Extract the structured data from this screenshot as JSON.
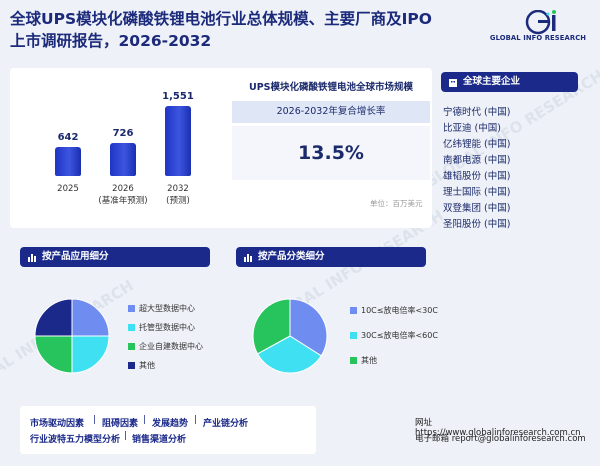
{
  "header": {
    "title_line1": "全球UPS模块化磷酸铁锂电池行业总体规模、主要厂商及IPO",
    "title_line2": "上市调研报告，2026-2032",
    "logo_text": "GLOBAL INFO RESEARCH",
    "logo_letters": "Gi"
  },
  "market": {
    "title": "UPS模块化磷酸铁锂电池全球市场规模",
    "cagr_label": "2026-2032年复合增长率",
    "cagr_value": "13.5%",
    "unit": "单位：百万美元"
  },
  "chart_data": {
    "type": "bar",
    "categories": [
      "2025",
      "2026",
      "2032"
    ],
    "category_sublabels": [
      "",
      "(基准年预测)",
      "(预测)"
    ],
    "values": [
      642,
      726,
      1551
    ],
    "value_labels": [
      "642",
      "726",
      "1,551"
    ]
  },
  "companies": {
    "title": "全球主要企业",
    "items": [
      "宁德时代 (中国)",
      "比亚迪 (中国)",
      "亿纬锂能 (中国)",
      "南都电源 (中国)",
      "雄韬股份 (中国)",
      "理士国际 (中国)",
      "双登集团 (中国)",
      "圣阳股份 (中国)"
    ]
  },
  "application": {
    "title": "按产品应用细分",
    "items": [
      {
        "label": "超大型数据中心",
        "color": "#6f8cf0",
        "share": 0.25
      },
      {
        "label": "托管型数据中心",
        "color": "#3fe0f2",
        "share": 0.25
      },
      {
        "label": "企业自建数据中心",
        "color": "#27c45e",
        "share": 0.25
      },
      {
        "label": "其他",
        "color": "#1b2a8a",
        "share": 0.25
      }
    ]
  },
  "product_type": {
    "title": "按产品分类细分",
    "items": [
      {
        "label": "10C≤放电倍率<30C",
        "color": "#6f8cf0",
        "share": 0.34
      },
      {
        "label": "30C≤放电倍率<60C",
        "color": "#3fe0f2",
        "share": 0.33
      },
      {
        "label": "其他",
        "color": "#27c45e",
        "share": 0.33
      }
    ]
  },
  "footer": {
    "links": [
      "市场驱动因素",
      "阻碍因素",
      "发展趋势",
      "产业链分析",
      "行业波特五力模型分析",
      "销售渠道分析"
    ],
    "website_label": "网址",
    "website": "https://www.globalinforesearch.com.cn",
    "email_label": "电子邮箱",
    "email": "report@globalinforesearch.com"
  },
  "watermark": "GLOBAL INFO RESEARCH"
}
